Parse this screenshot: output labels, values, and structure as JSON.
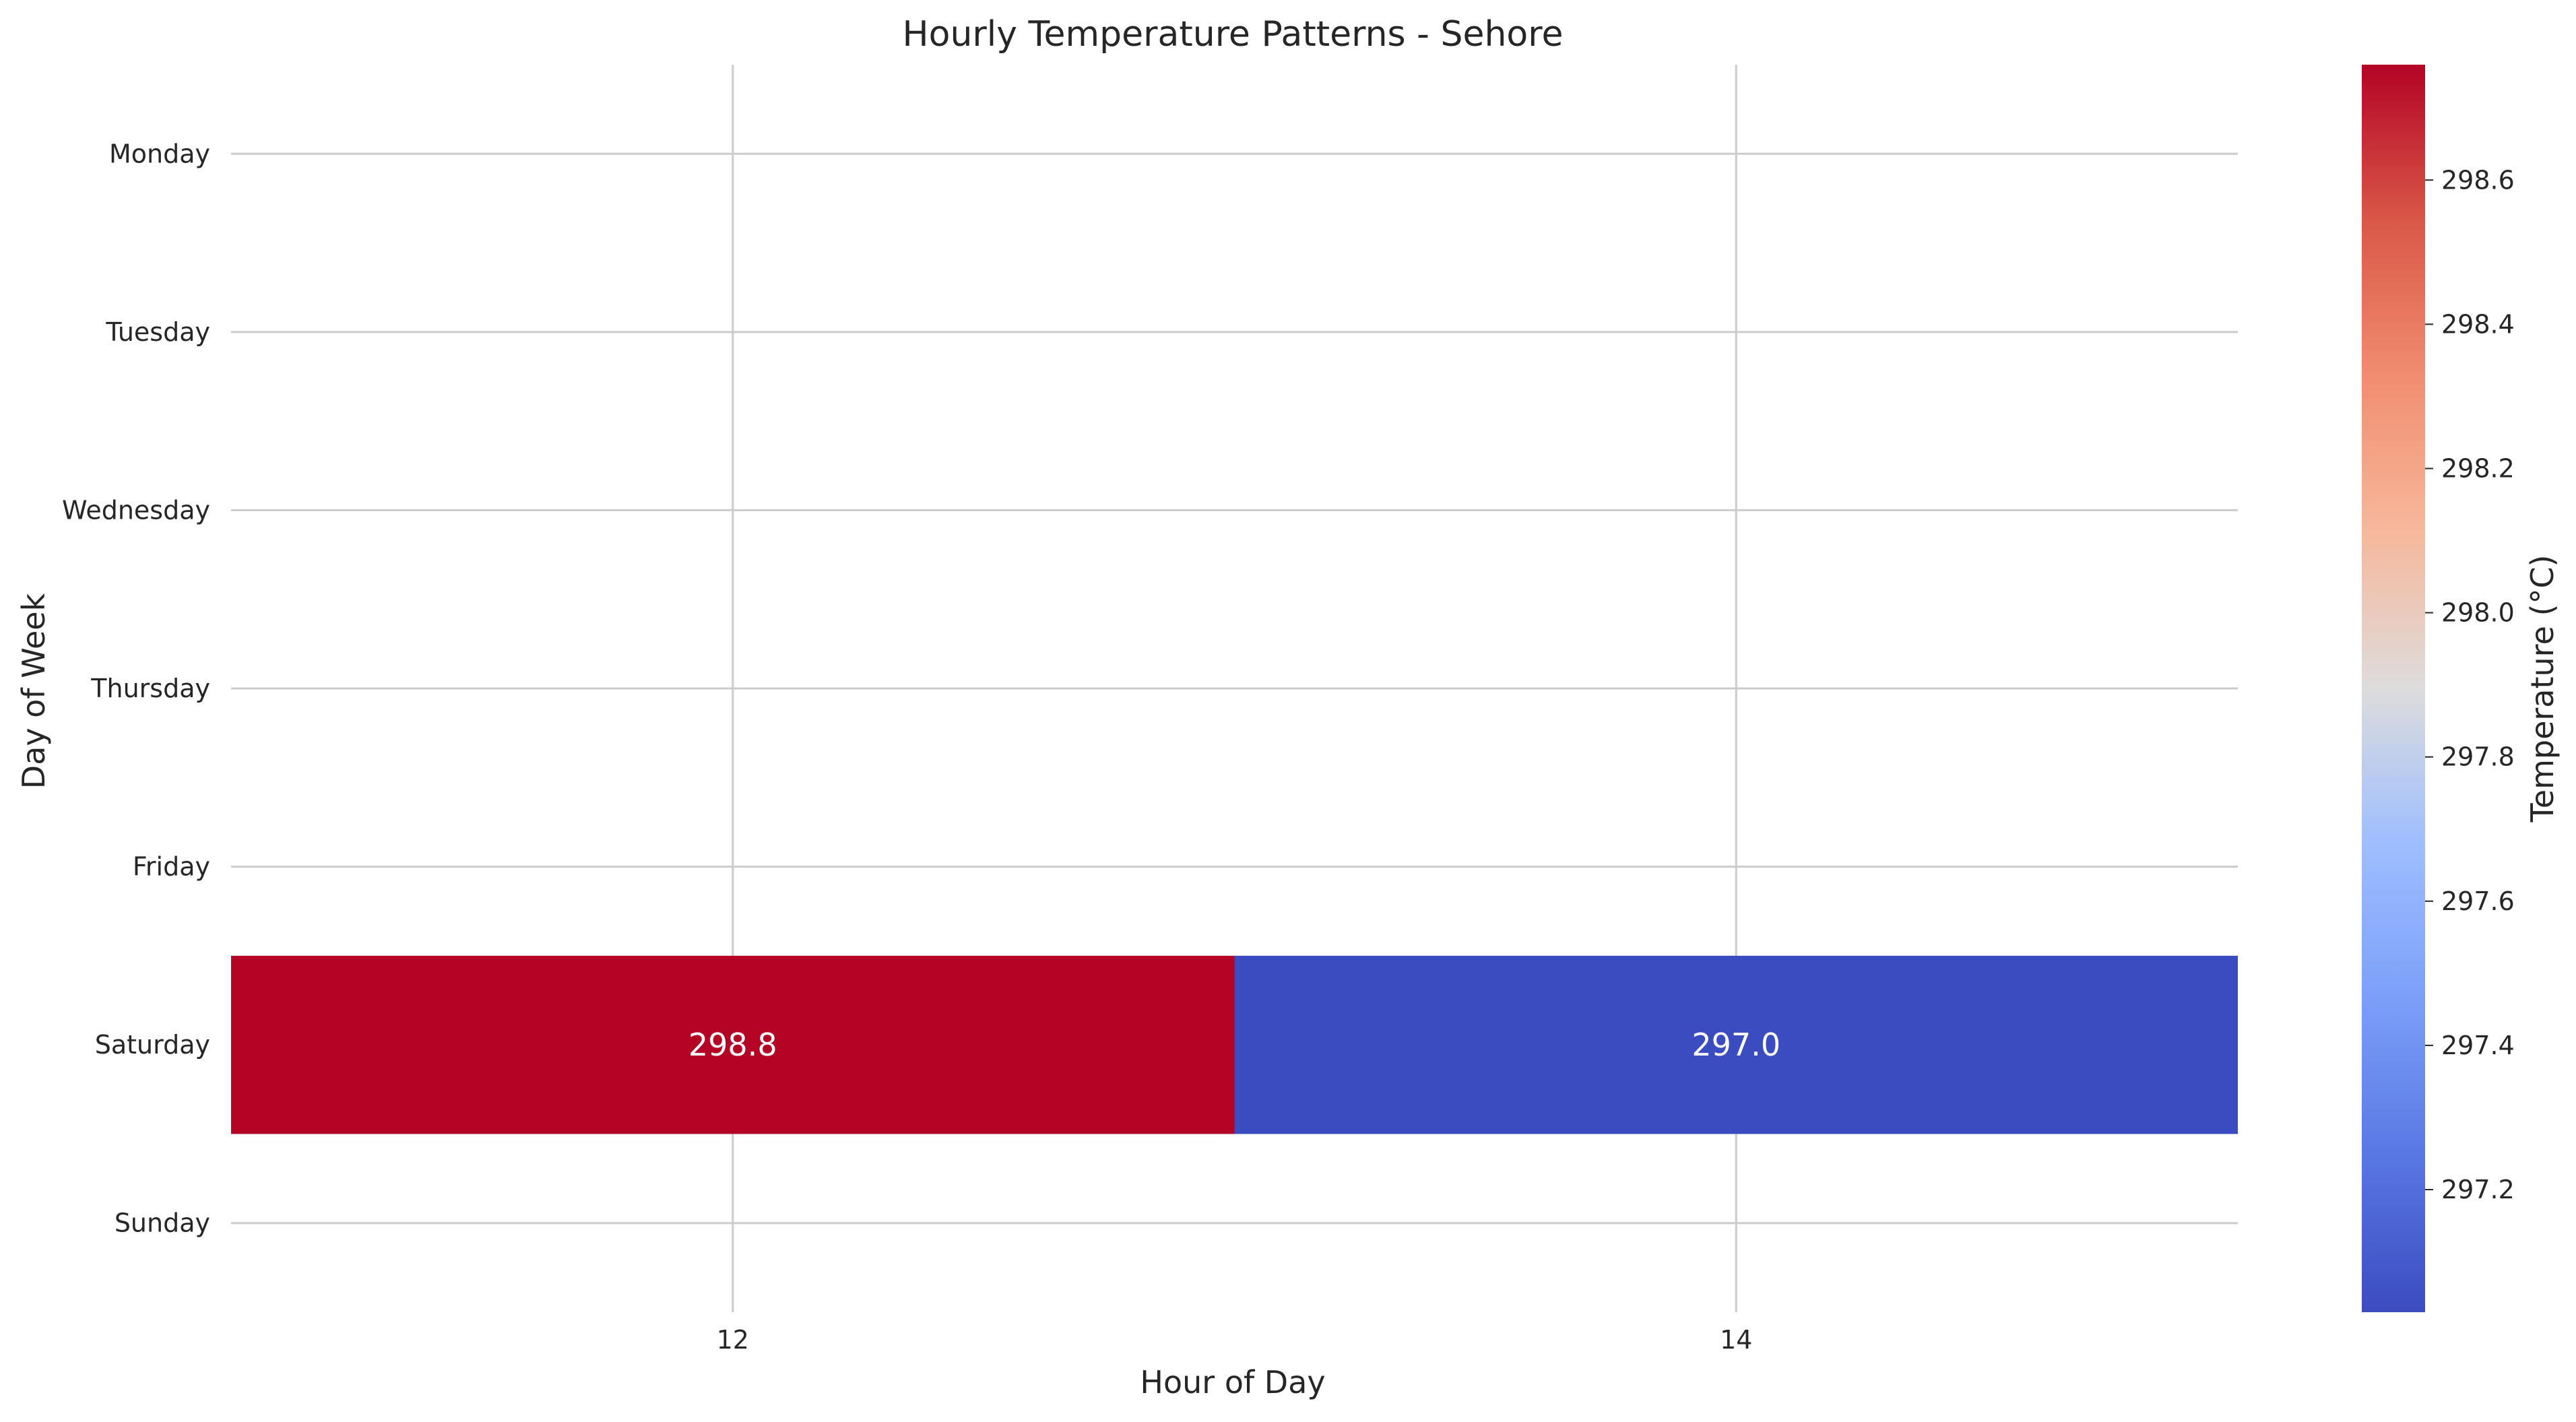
{
  "chart_data": {
    "type": "heatmap",
    "title": "Hourly Temperature Patterns - Sehore",
    "xlabel": "Hour of Day",
    "ylabel": "Day of Week",
    "x": [
      12,
      14
    ],
    "y": [
      "Monday",
      "Tuesday",
      "Wednesday",
      "Thursday",
      "Friday",
      "Saturday",
      "Sunday"
    ],
    "cells": [
      {
        "day": "Saturday",
        "hour": 12,
        "value": 298.8,
        "label": "298.8"
      },
      {
        "day": "Saturday",
        "hour": 14,
        "value": 297.0,
        "label": "297.0"
      }
    ],
    "colormap": "coolwarm",
    "colors": {
      "max": "#b40426",
      "min": "#3b4cc0"
    },
    "grid": true,
    "colorbar": {
      "label": "Temperature (°C)",
      "range": [
        297.03,
        298.76
      ],
      "ticks": [
        "297.2",
        "297.4",
        "297.6",
        "297.8",
        "298.0",
        "298.2",
        "298.4",
        "298.6"
      ]
    }
  }
}
